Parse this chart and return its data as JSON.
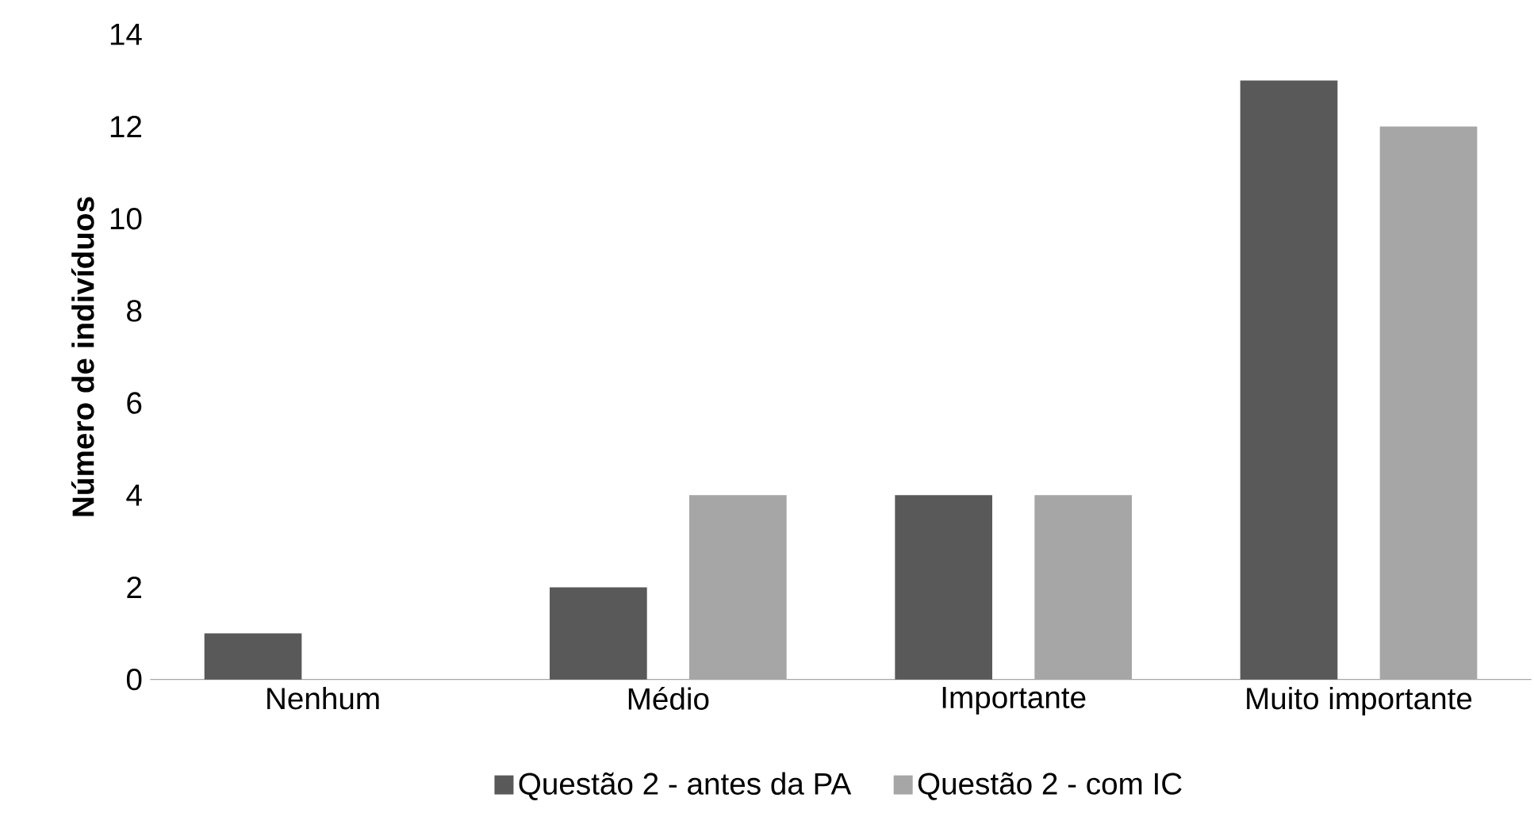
{
  "chart_data": {
    "type": "bar",
    "ylabel": "Número de indivíduos",
    "categories": [
      "Nenhum",
      "Médio",
      "Importante",
      "Muito importante"
    ],
    "series": [
      {
        "name": "Questão 2 - antes da PA",
        "color": "#595959",
        "values": [
          1,
          2,
          4,
          13
        ]
      },
      {
        "name": "Questão 2 - com IC",
        "color": "#a6a6a6",
        "values": [
          0,
          4,
          4,
          12
        ]
      }
    ],
    "ylim": [
      0,
      14
    ],
    "yticks": [
      0,
      2,
      4,
      6,
      8,
      10,
      12,
      14
    ],
    "legend": "bottom"
  }
}
